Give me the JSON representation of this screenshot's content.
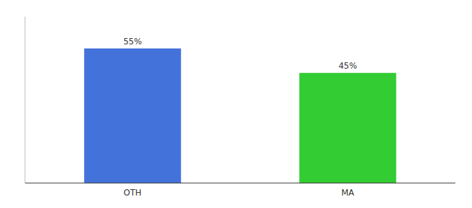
{
  "chart_data": {
    "type": "bar",
    "categories": [
      "OTH",
      "MA"
    ],
    "values": [
      55,
      45
    ],
    "value_labels": [
      "55%",
      "45%"
    ],
    "colors": [
      "#4472db",
      "#33cc33"
    ],
    "ylim": [
      0,
      68
    ],
    "yticks": [],
    "grid": false,
    "data_labels": true,
    "tick_labels": "x"
  }
}
